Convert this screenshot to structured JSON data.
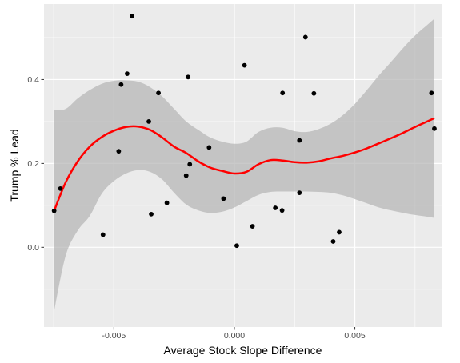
{
  "chart_data": {
    "type": "scatter",
    "xlabel": "Average Stock Slope Difference",
    "ylabel": "Trump % Lead",
    "xlim": [
      -0.0079,
      0.0086
    ],
    "ylim": [
      -0.19,
      0.58
    ],
    "x_ticks": [
      -0.005,
      0,
      0.005
    ],
    "x_tick_labels": [
      "-0.005",
      "0.000",
      "0.005"
    ],
    "y_ticks": [
      0,
      0.2,
      0.4
    ],
    "y_tick_labels": [
      "0.0",
      "0.2",
      "0.4"
    ],
    "grid": true,
    "colors": {
      "panel": "#ebebeb",
      "grid": "#ffffff",
      "points": "#000000",
      "smooth_line": "#ff0000",
      "confidence_band": "#b3b3b3"
    },
    "points": [
      {
        "x": -0.00748,
        "y": 0.087
      },
      {
        "x": -0.00722,
        "y": 0.14
      },
      {
        "x": -0.00545,
        "y": 0.03
      },
      {
        "x": -0.0048,
        "y": 0.229
      },
      {
        "x": -0.0047,
        "y": 0.388
      },
      {
        "x": -0.00445,
        "y": 0.414
      },
      {
        "x": -0.00425,
        "y": 0.551
      },
      {
        "x": -0.00355,
        "y": 0.3
      },
      {
        "x": -0.00345,
        "y": 0.079
      },
      {
        "x": -0.00315,
        "y": 0.368
      },
      {
        "x": -0.0028,
        "y": 0.106
      },
      {
        "x": -0.002,
        "y": 0.171
      },
      {
        "x": -0.00192,
        "y": 0.406
      },
      {
        "x": -0.00185,
        "y": 0.198
      },
      {
        "x": -0.00105,
        "y": 0.238
      },
      {
        "x": -0.00045,
        "y": 0.116
      },
      {
        "x": 0.0001,
        "y": 0.004
      },
      {
        "x": 0.00042,
        "y": 0.434
      },
      {
        "x": 0.00075,
        "y": 0.05
      },
      {
        "x": 0.0017,
        "y": 0.094
      },
      {
        "x": 0.00198,
        "y": 0.088
      },
      {
        "x": 0.002,
        "y": 0.368
      },
      {
        "x": 0.0027,
        "y": 0.255
      },
      {
        "x": 0.0027,
        "y": 0.13
      },
      {
        "x": 0.00295,
        "y": 0.501
      },
      {
        "x": 0.0033,
        "y": 0.367
      },
      {
        "x": 0.0041,
        "y": 0.014
      },
      {
        "x": 0.00435,
        "y": 0.036
      },
      {
        "x": 0.00818,
        "y": 0.368
      },
      {
        "x": 0.0083,
        "y": 0.283
      }
    ],
    "smooth": [
      {
        "x": -0.00748,
        "y": 0.087,
        "lower": -0.152,
        "upper": 0.327
      },
      {
        "x": -0.007,
        "y": 0.155,
        "lower": -0.02,
        "upper": 0.33
      },
      {
        "x": -0.0065,
        "y": 0.205,
        "lower": 0.04,
        "upper": 0.355
      },
      {
        "x": -0.006,
        "y": 0.24,
        "lower": 0.075,
        "upper": 0.375
      },
      {
        "x": -0.0055,
        "y": 0.263,
        "lower": 0.128,
        "upper": 0.39
      },
      {
        "x": -0.005,
        "y": 0.278,
        "lower": 0.158,
        "upper": 0.397
      },
      {
        "x": -0.0045,
        "y": 0.287,
        "lower": 0.176,
        "upper": 0.398
      },
      {
        "x": -0.004,
        "y": 0.288,
        "lower": 0.184,
        "upper": 0.395
      },
      {
        "x": -0.0035,
        "y": 0.28,
        "lower": 0.18,
        "upper": 0.382
      },
      {
        "x": -0.003,
        "y": 0.262,
        "lower": 0.162,
        "upper": 0.36
      },
      {
        "x": -0.0025,
        "y": 0.24,
        "lower": 0.13,
        "upper": 0.33
      },
      {
        "x": -0.002,
        "y": 0.225,
        "lower": 0.102,
        "upper": 0.3
      },
      {
        "x": -0.0015,
        "y": 0.205,
        "lower": 0.088,
        "upper": 0.28
      },
      {
        "x": -0.001,
        "y": 0.19,
        "lower": 0.082,
        "upper": 0.262
      },
      {
        "x": -0.0005,
        "y": 0.182,
        "lower": 0.085,
        "upper": 0.252
      },
      {
        "x": 0.0,
        "y": 0.176,
        "lower": 0.095,
        "upper": 0.247
      },
      {
        "x": 0.0005,
        "y": 0.18,
        "lower": 0.11,
        "upper": 0.252
      },
      {
        "x": 0.001,
        "y": 0.198,
        "lower": 0.125,
        "upper": 0.275
      },
      {
        "x": 0.0015,
        "y": 0.208,
        "lower": 0.132,
        "upper": 0.285
      },
      {
        "x": 0.002,
        "y": 0.207,
        "lower": 0.133,
        "upper": 0.285
      },
      {
        "x": 0.0025,
        "y": 0.203,
        "lower": 0.133,
        "upper": 0.277
      },
      {
        "x": 0.003,
        "y": 0.202,
        "lower": 0.133,
        "upper": 0.275
      },
      {
        "x": 0.0035,
        "y": 0.205,
        "lower": 0.132,
        "upper": 0.282
      },
      {
        "x": 0.004,
        "y": 0.212,
        "lower": 0.13,
        "upper": 0.295
      },
      {
        "x": 0.0045,
        "y": 0.218,
        "lower": 0.124,
        "upper": 0.315
      },
      {
        "x": 0.005,
        "y": 0.226,
        "lower": 0.115,
        "upper": 0.342
      },
      {
        "x": 0.0055,
        "y": 0.236,
        "lower": 0.105,
        "upper": 0.375
      },
      {
        "x": 0.006,
        "y": 0.248,
        "lower": 0.095,
        "upper": 0.41
      },
      {
        "x": 0.0065,
        "y": 0.26,
        "lower": 0.088,
        "upper": 0.442
      },
      {
        "x": 0.007,
        "y": 0.273,
        "lower": 0.082,
        "upper": 0.475
      },
      {
        "x": 0.0075,
        "y": 0.287,
        "lower": 0.077,
        "upper": 0.505
      },
      {
        "x": 0.008,
        "y": 0.3,
        "lower": 0.073,
        "upper": 0.53
      },
      {
        "x": 0.0083,
        "y": 0.308,
        "lower": 0.07,
        "upper": 0.545
      }
    ]
  }
}
